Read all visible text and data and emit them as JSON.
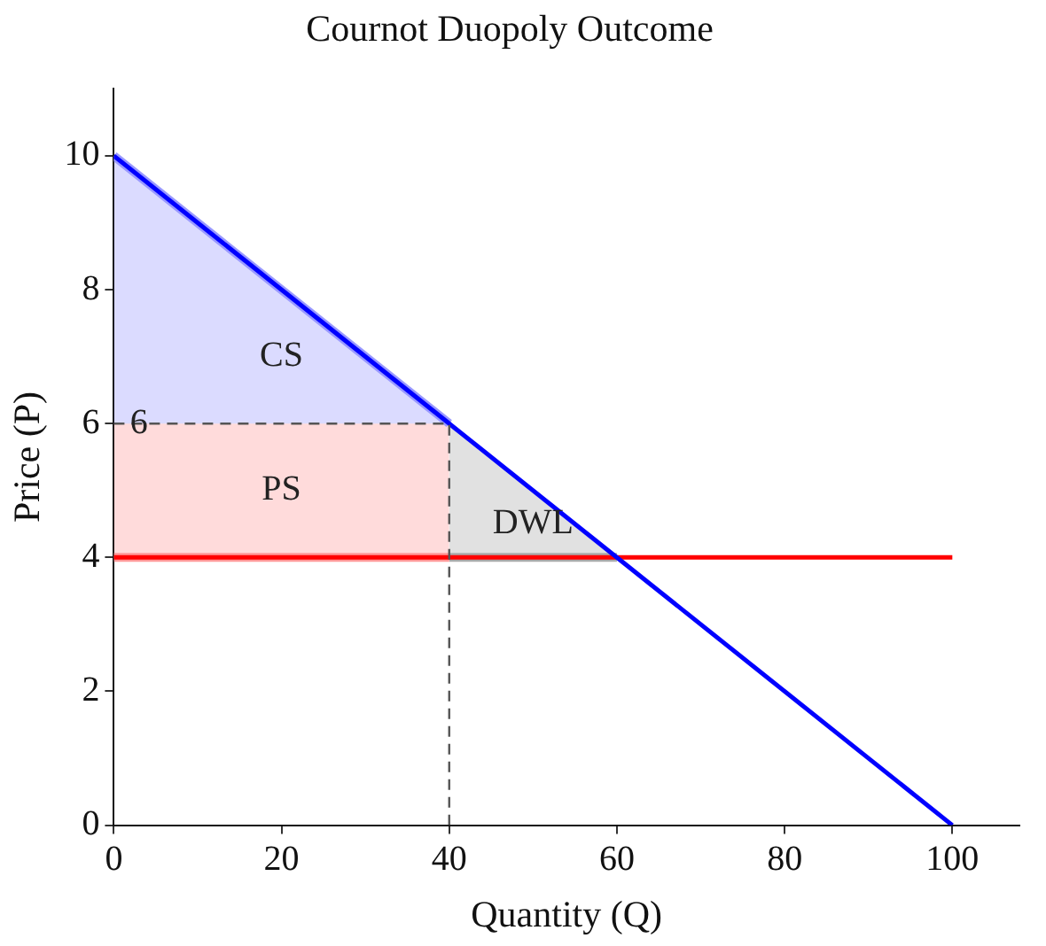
{
  "chart_data": {
    "type": "line",
    "title": "Cournot Duopoly Outcome",
    "xlabel": "Quantity (Q)",
    "ylabel": "Price (P)",
    "xlim": [
      0,
      108
    ],
    "ylim": [
      0,
      11
    ],
    "xticks": [
      0,
      20,
      40,
      60,
      80,
      100
    ],
    "yticks": [
      0,
      2,
      4,
      6,
      8,
      10
    ],
    "grid": false,
    "legend": false,
    "marker": "none",
    "series": [
      {
        "name": "CS",
        "color": "#9999ff",
        "x": [
          0,
          40
        ],
        "values": [
          10,
          6
        ],
        "lower": [
          6,
          6
        ],
        "upper": [
          10,
          6
        ]
      },
      {
        "name": "PS",
        "color": "#ff9999",
        "x": [
          0,
          40
        ],
        "values": [
          4,
          4
        ],
        "lower": [
          4,
          4
        ],
        "upper": [
          6,
          6
        ]
      },
      {
        "name": "DWL",
        "color": "#aaaaaa",
        "x": [
          40,
          60
        ],
        "values": [
          4,
          4
        ],
        "lower": [
          4,
          4
        ],
        "upper": [
          6,
          4
        ]
      },
      {
        "color": "#555555",
        "line_style": "dashed",
        "x": [
          0,
          40,
          40
        ],
        "values": [
          6,
          6,
          0
        ]
      },
      {
        "color": "#0000ff",
        "x": [
          0,
          100
        ],
        "values": [
          10,
          0
        ]
      },
      {
        "color": "#ff0000",
        "x": [
          0,
          100
        ],
        "values": [
          4,
          4
        ]
      }
    ],
    "annotations": [
      {
        "text": "6",
        "x": 3,
        "y": 6
      }
    ]
  }
}
